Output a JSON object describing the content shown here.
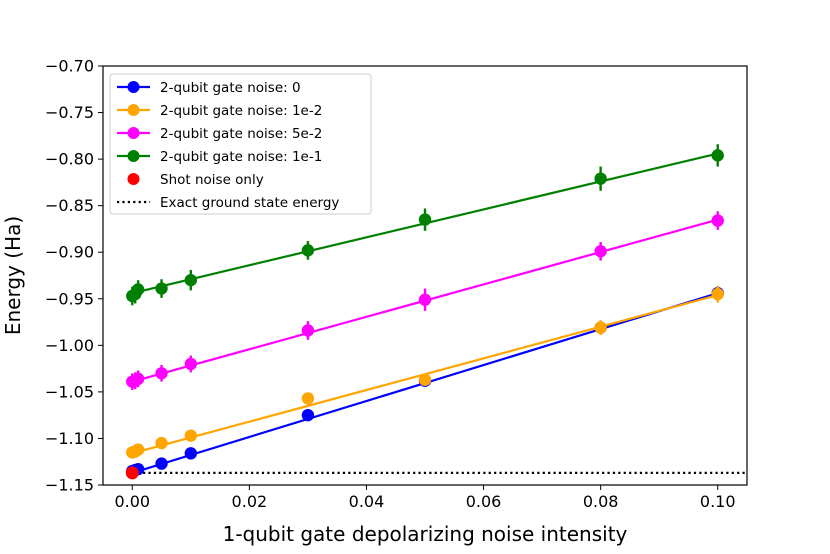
{
  "chart_data": {
    "type": "line",
    "title": "",
    "xlabel": "1-qubit gate depolarizing noise intensity",
    "ylabel": "Energy (Ha)",
    "xlim": [
      -0.005,
      0.105
    ],
    "ylim": [
      -1.15,
      -0.7
    ],
    "xticks": [
      0.0,
      0.02,
      0.04,
      0.06,
      0.08,
      0.1
    ],
    "xtick_labels": [
      "0.00",
      "0.02",
      "0.04",
      "0.06",
      "0.08",
      "0.10"
    ],
    "yticks": [
      -1.15,
      -1.1,
      -1.05,
      -1.0,
      -0.95,
      -0.9,
      -0.85,
      -0.8,
      -0.75,
      -0.7
    ],
    "ytick_labels": [
      "−1.15",
      "−1.10",
      "−1.05",
      "−1.00",
      "−0.95",
      "−0.90",
      "−0.85",
      "−0.80",
      "−0.75",
      "−0.70"
    ],
    "grid": false,
    "legend_position": "top-left",
    "series": [
      {
        "name": "2-qubit gate noise: 0",
        "color": "#0000ff",
        "x": [
          0.0,
          0.0005,
          0.001,
          0.005,
          0.01,
          0.03,
          0.05,
          0.08,
          0.1
        ],
        "y": [
          -1.135,
          -1.134,
          -1.133,
          -1.127,
          -1.116,
          -1.075,
          -1.038,
          -0.981,
          -0.944
        ],
        "err": [
          0.003,
          0.003,
          0.003,
          0.004,
          0.004,
          0.004,
          0.005,
          0.006,
          0.006
        ],
        "fit": [
          -1.137,
          -0.944
        ]
      },
      {
        "name": "2-qubit gate noise: 1e-2",
        "color": "#ffa500",
        "x": [
          0.0,
          0.0005,
          0.001,
          0.005,
          0.01,
          0.03,
          0.05,
          0.08,
          0.1
        ],
        "y": [
          -1.115,
          -1.114,
          -1.112,
          -1.105,
          -1.097,
          -1.057,
          -1.037,
          -0.981,
          -0.945
        ],
        "err": [
          0.004,
          0.004,
          0.004,
          0.005,
          0.005,
          0.005,
          0.006,
          0.008,
          0.009
        ],
        "fit": [
          -1.116,
          -0.946
        ]
      },
      {
        "name": "2-qubit gate noise: 5e-2",
        "color": "#ff00ff",
        "x": [
          0.0,
          0.0005,
          0.001,
          0.005,
          0.01,
          0.03,
          0.05,
          0.08,
          0.1
        ],
        "y": [
          -1.039,
          -1.038,
          -1.036,
          -1.03,
          -1.02,
          -0.984,
          -0.951,
          -0.899,
          -0.866
        ],
        "err": [
          0.009,
          0.009,
          0.009,
          0.009,
          0.009,
          0.01,
          0.012,
          0.01,
          0.01
        ],
        "fit": [
          -1.039,
          -0.865
        ]
      },
      {
        "name": "2-qubit gate noise: 1e-1",
        "color": "#008000",
        "x": [
          0.0,
          0.0005,
          0.001,
          0.005,
          0.01,
          0.03,
          0.05,
          0.08,
          0.1
        ],
        "y": [
          -0.947,
          -0.945,
          -0.94,
          -0.939,
          -0.93,
          -0.898,
          -0.865,
          -0.821,
          -0.796
        ],
        "err": [
          0.01,
          0.01,
          0.01,
          0.01,
          0.011,
          0.01,
          0.012,
          0.013,
          0.012
        ],
        "fit": [
          -0.944,
          -0.794
        ]
      }
    ],
    "shot_noise": {
      "name": "Shot noise only",
      "color": "#ff0000",
      "x": [
        0.0
      ],
      "y": [
        -1.137
      ]
    },
    "exact_energy": {
      "name": "Exact ground state energy",
      "color": "#000000",
      "value": -1.137,
      "x_range": [
        0.0,
        0.105
      ]
    }
  }
}
